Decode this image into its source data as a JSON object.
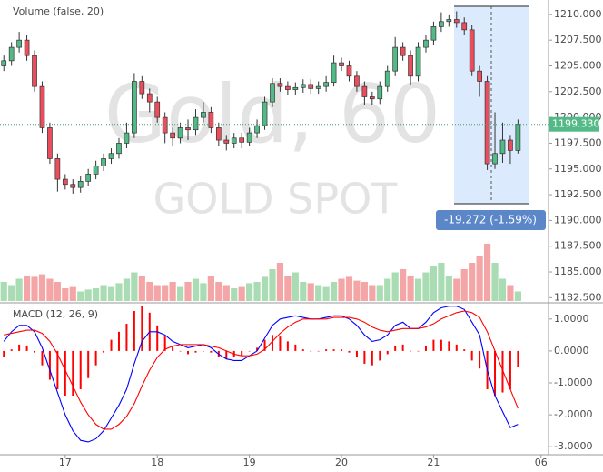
{
  "chart_data": [
    {
      "type": "candlestick",
      "title": "Gold, 60",
      "subtitle": "GOLD SPOT",
      "annotation": "-19.272 (-1.59%)",
      "last_price": {
        "value": 1199.33,
        "label": "1199.330"
      },
      "up_color": "#53b987",
      "down_color": "#eb4d5c",
      "ylim": [
        1182,
        1211.4
      ],
      "yticks": [
        {
          "value": 1182.5,
          "label": "1182.500"
        },
        {
          "value": 1185,
          "label": "1185.000"
        },
        {
          "value": 1187.5,
          "label": "1187.500"
        },
        {
          "value": 1190,
          "label": "1190.000"
        },
        {
          "value": 1192.5,
          "label": "1192.500"
        },
        {
          "value": 1195,
          "label": "1195.000"
        },
        {
          "value": 1197.5,
          "label": "1197.500"
        },
        {
          "value": 1200,
          "label": "1200.000"
        },
        {
          "value": 1202.5,
          "label": "1202.500"
        },
        {
          "value": 1205,
          "label": "1205.000"
        },
        {
          "value": 1207.5,
          "label": "1207.500"
        },
        {
          "value": 1210,
          "label": "1210.000"
        }
      ],
      "open": [
        1205,
        1205.5,
        1206.8,
        1207.5,
        1206,
        1203,
        1199,
        1196,
        1194,
        1193.5,
        1193.2,
        1193.8,
        1194.5,
        1195.3,
        1196,
        1196.5,
        1197.5,
        1198.5,
        1203.5,
        1202.3,
        1201.5,
        1200,
        1198.5,
        1198,
        1199,
        1198.8,
        1200,
        1200.5,
        1199,
        1197.8,
        1197.5,
        1198,
        1197.6,
        1198.5,
        1199.2,
        1201.5,
        1203.3,
        1203,
        1202.7,
        1202.9,
        1203.2,
        1202.8,
        1203,
        1203.4,
        1205.3,
        1205,
        1204,
        1203,
        1202,
        1201.8,
        1203,
        1204.5,
        1206.8,
        1206,
        1204,
        1206.8,
        1207.5,
        1208.8,
        1209.3,
        1209.5,
        1209.2,
        1208.5,
        1204.5,
        1203.5,
        1195.5,
        1196.5,
        1197.8,
        1196.8
      ],
      "high": [
        1206,
        1207.3,
        1208.3,
        1208,
        1206.5,
        1203.5,
        1199.5,
        1196.5,
        1194.5,
        1194,
        1194.3,
        1195,
        1195.8,
        1196.5,
        1197,
        1198,
        1199.5,
        1204.3,
        1204,
        1202.8,
        1202,
        1200.5,
        1199,
        1199.5,
        1199.8,
        1200.8,
        1201.5,
        1201,
        1199.5,
        1198.3,
        1198.5,
        1198.5,
        1199,
        1199.8,
        1202,
        1203.8,
        1203.8,
        1203.5,
        1203.4,
        1203.7,
        1203.7,
        1203.5,
        1204,
        1206,
        1205.8,
        1205.5,
        1204.5,
        1203.5,
        1202.5,
        1203.5,
        1205,
        1207.8,
        1207.3,
        1206.5,
        1207.3,
        1208,
        1209.3,
        1210.2,
        1210,
        1210.3,
        1209.7,
        1209,
        1205,
        1204,
        1200.5,
        1199.5,
        1198.3,
        1199.8
      ],
      "low": [
        1204.5,
        1205,
        1206.3,
        1205.5,
        1202.5,
        1198.5,
        1195.5,
        1192.8,
        1193,
        1192.6,
        1192.7,
        1193.3,
        1194,
        1194.8,
        1195.5,
        1196,
        1197,
        1198,
        1201.8,
        1200.5,
        1199.5,
        1197.5,
        1197.2,
        1197.5,
        1197.8,
        1198.3,
        1199.5,
        1198.5,
        1197.2,
        1196.8,
        1197,
        1197,
        1197.2,
        1198,
        1198.8,
        1201,
        1202.5,
        1202.2,
        1202.2,
        1202.4,
        1202.3,
        1202.3,
        1202.5,
        1203,
        1204.5,
        1203.5,
        1202.5,
        1201.2,
        1201.2,
        1201.3,
        1202.5,
        1204,
        1205.5,
        1203.2,
        1203.5,
        1206.3,
        1207,
        1208.3,
        1208.8,
        1208.7,
        1208,
        1204,
        1202,
        1194.9,
        1195,
        1195.6,
        1195.5,
        1196.5
      ],
      "close": [
        1205.5,
        1206.8,
        1207.5,
        1206,
        1203,
        1199,
        1196,
        1194,
        1193.5,
        1193.2,
        1193.8,
        1194.5,
        1195.3,
        1196,
        1196.5,
        1197.5,
        1198.5,
        1203.5,
        1202.3,
        1201.5,
        1200,
        1198.5,
        1198,
        1199,
        1198.8,
        1200,
        1200.5,
        1199,
        1197.8,
        1197.5,
        1198,
        1197.6,
        1198.5,
        1199.2,
        1201.5,
        1203.3,
        1203,
        1202.7,
        1202.9,
        1203.2,
        1202.8,
        1203,
        1203.4,
        1205.3,
        1205,
        1204,
        1203,
        1202,
        1201.8,
        1203,
        1204.5,
        1206.8,
        1206,
        1204,
        1206.8,
        1207.5,
        1208.8,
        1209.3,
        1209.5,
        1209.2,
        1208.5,
        1204.5,
        1203.5,
        1195.5,
        1196.5,
        1197.8,
        1196.8,
        1199.33
      ]
    },
    {
      "type": "bar",
      "title": "Volume (false, 20)",
      "up_color": "#a9dcb3",
      "down_color": "#f4a6a6",
      "ylim": [
        0,
        100
      ],
      "values": [
        30,
        25,
        35,
        40,
        38,
        42,
        35,
        30,
        20,
        22,
        15,
        18,
        20,
        25,
        22,
        28,
        35,
        45,
        40,
        30,
        25,
        25,
        30,
        22,
        30,
        35,
        28,
        40,
        30,
        25,
        20,
        22,
        28,
        30,
        38,
        50,
        60,
        40,
        45,
        30,
        28,
        25,
        22,
        30,
        35,
        38,
        32,
        30,
        25,
        25,
        35,
        45,
        50,
        40,
        35,
        45,
        55,
        60,
        40,
        35,
        50,
        60,
        70,
        90,
        60,
        35,
        25,
        15
      ]
    },
    {
      "type": "line",
      "title": "MACD (12, 26, 9)",
      "categories": [
        null,
        null,
        null,
        null,
        null,
        null,
        null,
        null,
        "17",
        null,
        null,
        null,
        null,
        null,
        null,
        null,
        null,
        null,
        null,
        null,
        "18",
        null,
        null,
        null,
        null,
        null,
        null,
        null,
        null,
        null,
        null,
        null,
        "19",
        null,
        null,
        null,
        null,
        null,
        null,
        null,
        null,
        null,
        null,
        null,
        "20",
        null,
        null,
        null,
        null,
        null,
        null,
        null,
        null,
        null,
        null,
        null,
        "21",
        null,
        null,
        null,
        null,
        null,
        null,
        null,
        null,
        null,
        null,
        null,
        null,
        null,
        "06"
      ],
      "ylim": [
        -3.25,
        1.45
      ],
      "yticks": [
        {
          "value": -3,
          "label": "-3.0000"
        },
        {
          "value": -2,
          "label": "-2.0000"
        },
        {
          "value": -1,
          "label": "-1.0000"
        },
        {
          "value": 0,
          "label": "0.0000"
        },
        {
          "value": 1,
          "label": "1.0000"
        }
      ],
      "series": [
        {
          "name": "Histogram",
          "kind": "histogram",
          "color": "#ff0000",
          "values": [
            -0.2,
            0.05,
            0.2,
            0.15,
            -0.05,
            -0.45,
            -0.9,
            -1.2,
            -1.4,
            -1.4,
            -1.2,
            -0.85,
            -0.45,
            -0.05,
            0.35,
            0.6,
            0.85,
            1.25,
            1.4,
            1.2,
            0.8,
            0.45,
            0.15,
            0,
            -0.1,
            -0.05,
            0,
            -0.05,
            -0.2,
            -0.25,
            -0.2,
            -0.15,
            0,
            0.1,
            0.35,
            0.5,
            0.45,
            0.3,
            0.2,
            0.05,
            0,
            0,
            0.05,
            0.05,
            0.05,
            -0.05,
            -0.2,
            -0.4,
            -0.45,
            -0.3,
            -0.1,
            0.15,
            0.2,
            0,
            0,
            0.15,
            0.35,
            0.35,
            0.3,
            0.2,
            0.05,
            -0.3,
            -0.55,
            -1.2,
            -1.4,
            -1.3,
            -1.2,
            -0.5,
            null,
            null,
            null
          ]
        },
        {
          "name": "MACD",
          "kind": "line",
          "color": "#0000ff",
          "values": [
            0.3,
            0.6,
            0.8,
            0.8,
            0.6,
            0.1,
            -0.6,
            -1.3,
            -2.0,
            -2.5,
            -2.8,
            -2.85,
            -2.75,
            -2.5,
            -2.1,
            -1.7,
            -1.2,
            -0.4,
            0.3,
            0.6,
            0.6,
            0.5,
            0.3,
            0.2,
            0.1,
            0.15,
            0.2,
            0.1,
            -0.1,
            -0.25,
            -0.3,
            -0.3,
            -0.15,
            0,
            0.4,
            0.8,
            1.0,
            1.05,
            1.1,
            1.05,
            1.0,
            1.0,
            1.05,
            1.1,
            1.1,
            1.0,
            0.8,
            0.5,
            0.3,
            0.35,
            0.5,
            0.8,
            0.9,
            0.7,
            0.7,
            0.9,
            1.2,
            1.35,
            1.4,
            1.4,
            1.3,
            0.9,
            0.5,
            -0.6,
            -1.4,
            -1.9,
            -2.4,
            -2.3,
            null,
            null,
            null
          ]
        },
        {
          "name": "Signal",
          "kind": "line",
          "color": "#ff0000",
          "values": [
            0.5,
            0.55,
            0.6,
            0.65,
            0.65,
            0.55,
            0.3,
            -0.1,
            -0.6,
            -1.1,
            -1.6,
            -2.0,
            -2.3,
            -2.45,
            -2.45,
            -2.3,
            -2.05,
            -1.65,
            -1.1,
            -0.6,
            -0.2,
            0.05,
            0.15,
            0.2,
            0.2,
            0.2,
            0.2,
            0.15,
            0.1,
            0,
            -0.1,
            -0.15,
            -0.15,
            -0.1,
            0.05,
            0.3,
            0.55,
            0.75,
            0.9,
            1.0,
            1.0,
            1.0,
            1.0,
            1.05,
            1.05,
            1.05,
            1.0,
            0.9,
            0.75,
            0.65,
            0.6,
            0.65,
            0.7,
            0.7,
            0.7,
            0.75,
            0.85,
            1.0,
            1.1,
            1.2,
            1.25,
            1.2,
            1.05,
            0.6,
            0,
            -0.6,
            -1.2,
            -1.8,
            null,
            null,
            null
          ]
        }
      ]
    }
  ]
}
